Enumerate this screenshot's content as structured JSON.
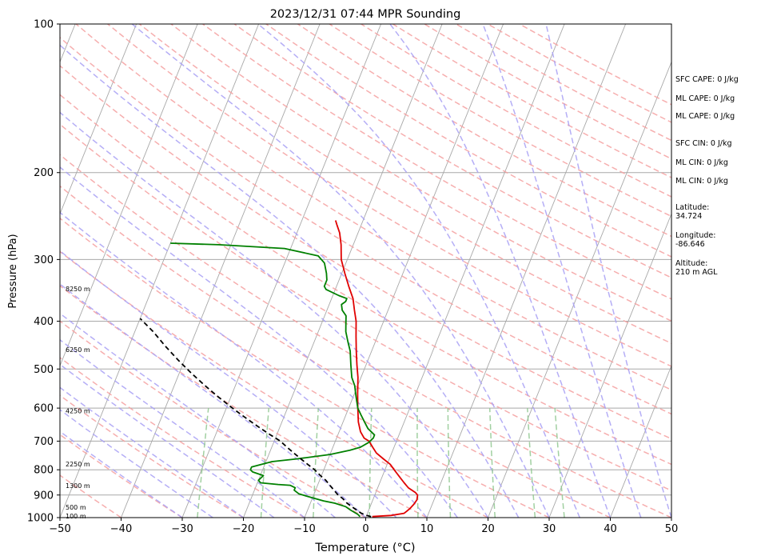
{
  "chart_data": {
    "type": "line",
    "title": "2023/12/31 07:44 MPR Sounding",
    "xlabel": "Temperature (°C)",
    "ylabel": "Pressure (hPa)",
    "xlim": [
      -50,
      50
    ],
    "ylim": [
      1000,
      100
    ],
    "y_scale": "log",
    "x_ticks": [
      "−50",
      "−40",
      "−30",
      "−20",
      "−10",
      "0",
      "10",
      "20",
      "30",
      "40",
      "50"
    ],
    "y_ticks": [
      {
        "p": 100,
        "label": "100"
      },
      {
        "p": 200,
        "label": "200"
      },
      {
        "p": 300,
        "label": "300"
      },
      {
        "p": 400,
        "label": "400"
      },
      {
        "p": 500,
        "label": "500"
      },
      {
        "p": 600,
        "label": "600"
      },
      {
        "p": 700,
        "label": "700"
      },
      {
        "p": 800,
        "label": "800"
      },
      {
        "p": 900,
        "label": "900"
      },
      {
        "p": 1000,
        "label": "1000"
      }
    ],
    "height_labels": [
      {
        "p": 993,
        "label": "100 m"
      },
      {
        "p": 952,
        "label": "500 m"
      },
      {
        "p": 862,
        "label": "1300 m"
      },
      {
        "p": 779,
        "label": "2250 m"
      },
      {
        "p": 608,
        "label": "4250 m"
      },
      {
        "p": 457,
        "label": "6250 m"
      },
      {
        "p": 344,
        "label": "8250 m"
      }
    ],
    "series": [
      {
        "color": "#e00000",
        "points": [
          [
            1,
            995
          ],
          [
            4,
            990
          ],
          [
            6,
            980
          ],
          [
            6.6,
            960
          ],
          [
            7,
            940
          ],
          [
            7.2,
            920
          ],
          [
            7,
            900
          ],
          [
            6.5,
            890
          ],
          [
            5,
            870
          ],
          [
            4,
            850
          ],
          [
            3,
            830
          ],
          [
            2,
            810
          ],
          [
            1.5,
            800
          ],
          [
            0.5,
            780
          ],
          [
            -1,
            760
          ],
          [
            -2.5,
            740
          ],
          [
            -3.5,
            720
          ],
          [
            -4.5,
            700
          ],
          [
            -5.5,
            690
          ],
          [
            -6.5,
            670
          ],
          [
            -7.5,
            640
          ],
          [
            -8.5,
            600
          ],
          [
            -9.5,
            560
          ],
          [
            -10.5,
            520
          ],
          [
            -11.5,
            490
          ],
          [
            -12.5,
            460
          ],
          [
            -13.5,
            430
          ],
          [
            -14.5,
            400
          ],
          [
            -15.5,
            380
          ],
          [
            -16.5,
            360
          ],
          [
            -18,
            340
          ],
          [
            -19.5,
            320
          ],
          [
            -21,
            300
          ],
          [
            -22,
            280
          ],
          [
            -23,
            265
          ],
          [
            -24,
            255
          ],
          [
            -24.5,
            250
          ]
        ]
      },
      {
        "color": "#008000",
        "points": [
          [
            -1,
            995
          ],
          [
            -1.5,
            985
          ],
          [
            -3,
            965
          ],
          [
            -4,
            950
          ],
          [
            -6,
            935
          ],
          [
            -8,
            925
          ],
          [
            -10,
            912
          ],
          [
            -12.5,
            895
          ],
          [
            -13.5,
            880
          ],
          [
            -13.5,
            870
          ],
          [
            -14.5,
            860
          ],
          [
            -16.5,
            857
          ],
          [
            -19.5,
            850
          ],
          [
            -20,
            840
          ],
          [
            -19.5,
            822
          ],
          [
            -21.5,
            808
          ],
          [
            -22,
            800
          ],
          [
            -22,
            790
          ],
          [
            -20.5,
            780
          ],
          [
            -19,
            770
          ],
          [
            -15,
            760
          ],
          [
            -10,
            745
          ],
          [
            -7,
            730
          ],
          [
            -5.5,
            720
          ],
          [
            -4.5,
            705
          ],
          [
            -4,
            690
          ],
          [
            -4,
            680
          ],
          [
            -5.5,
            660
          ],
          [
            -6.5,
            640
          ],
          [
            -7.5,
            620
          ],
          [
            -8.5,
            600
          ],
          [
            -9.5,
            570
          ],
          [
            -10.5,
            540
          ],
          [
            -11.5,
            520
          ],
          [
            -12.5,
            490
          ],
          [
            -13.5,
            460
          ],
          [
            -14.5,
            440
          ],
          [
            -15.5,
            420
          ],
          [
            -16,
            405
          ],
          [
            -16.5,
            390
          ],
          [
            -17.5,
            380
          ],
          [
            -18,
            370
          ],
          [
            -17.5,
            365
          ],
          [
            -17.5,
            360
          ],
          [
            -19,
            355
          ],
          [
            -21.5,
            345
          ],
          [
            -22,
            340
          ],
          [
            -22,
            330
          ],
          [
            -22.5,
            320
          ],
          [
            -23.5,
            305
          ],
          [
            -25,
            295
          ],
          [
            -31,
            285
          ],
          [
            -42,
            280
          ],
          [
            -50,
            278
          ]
        ]
      },
      {
        "color": "#000000",
        "dash": "6,4",
        "points": [
          [
            0.8,
            995
          ],
          [
            0,
            990
          ],
          [
            -1,
            980
          ],
          [
            -2,
            965
          ],
          [
            -3,
            950
          ],
          [
            -4,
            935
          ],
          [
            -5,
            915
          ],
          [
            -6,
            900
          ],
          [
            -7,
            880
          ],
          [
            -8,
            860
          ],
          [
            -9,
            840
          ],
          [
            -10.3,
            820
          ],
          [
            -11.5,
            800
          ],
          [
            -13,
            780
          ],
          [
            -14.5,
            760
          ],
          [
            -16,
            740
          ],
          [
            -17.5,
            720
          ],
          [
            -19,
            700
          ],
          [
            -21,
            680
          ],
          [
            -23,
            660
          ],
          [
            -25,
            640
          ],
          [
            -27,
            620
          ],
          [
            -29,
            600
          ],
          [
            -32,
            570
          ],
          [
            -35,
            540
          ],
          [
            -38,
            510
          ],
          [
            -41,
            480
          ],
          [
            -44,
            450
          ],
          [
            -47,
            420
          ],
          [
            -50,
            395
          ]
        ]
      }
    ]
  },
  "side_panel": [
    {
      "text": "SFC CAPE: 0 J/kg"
    },
    {
      "text": "ML CAPE: 0 J/kg"
    },
    {
      "text": "ML CAPE: 0 J/kg"
    },
    {
      "text": "SFC CIN: 0 J/kg"
    },
    {
      "text": "ML CIN: 0 J/kg"
    },
    {
      "text": "ML CIN: 0 J/kg"
    },
    {
      "text": "Latitude:"
    },
    {
      "text": "34.724"
    },
    {
      "text": "Longitude:"
    },
    {
      "text": "-86.646"
    },
    {
      "text": "Altitude:"
    },
    {
      "text": "210 m AGL"
    }
  ],
  "colors": {
    "temperature": "#e00000",
    "dewpoint": "#008000",
    "parcel": "#000000",
    "dry_adiabat": "#f4a0a0",
    "moist_adiabat": "#a8a0f4",
    "mixing_ratio": "#90c890",
    "isotherm": "#a8a8a8"
  }
}
